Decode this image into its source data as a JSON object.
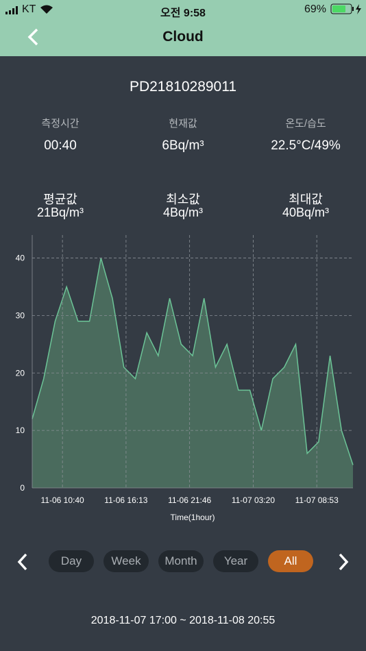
{
  "status_bar": {
    "carrier": "KT",
    "time": "오전 9:58",
    "battery": "69%"
  },
  "header": {
    "title": "Cloud"
  },
  "device_id": "PD21810289011",
  "stats": [
    {
      "label": "측정시간",
      "value": "00:40"
    },
    {
      "label": "현재값",
      "value": "6Bq/m³"
    },
    {
      "label": "온도/습도",
      "value": "22.5°C/49%"
    },
    {
      "label": "평균값",
      "value": "21Bq/m³"
    },
    {
      "label": "최소값",
      "value": "4Bq/m³"
    },
    {
      "label": "최대값",
      "value": "40Bq/m³"
    }
  ],
  "chart_data": {
    "type": "area",
    "xlabel": "Time(1hour)",
    "values": [
      12,
      19,
      29,
      35,
      29,
      29,
      40,
      33,
      21,
      19,
      27,
      23,
      33,
      25,
      23,
      33,
      21,
      25,
      17,
      17,
      10,
      19,
      21,
      25,
      6,
      8,
      23,
      10,
      4
    ],
    "color": "#6cc497",
    "fill": "#4a6b5d",
    "xlim": [
      0,
      28
    ],
    "xticks": [
      {
        "value": 2.64,
        "label": "11-06 10:40"
      },
      {
        "value": 8.19,
        "label": "11-06 16:13"
      },
      {
        "value": 13.74,
        "label": "11-06 21:46"
      },
      {
        "value": 19.29,
        "label": "11-07 03:20"
      },
      {
        "value": 24.84,
        "label": "11-07 08:53"
      }
    ],
    "ylim": [
      0,
      44
    ],
    "yticks": [
      0,
      10,
      20,
      30,
      40
    ],
    "grid": true
  },
  "range_buttons": {
    "items": [
      "Day",
      "Week",
      "Month",
      "Year",
      "All"
    ],
    "active": "All"
  },
  "date_range": "2018-11-07 17:00 ~ 2018-11-08 20:55"
}
